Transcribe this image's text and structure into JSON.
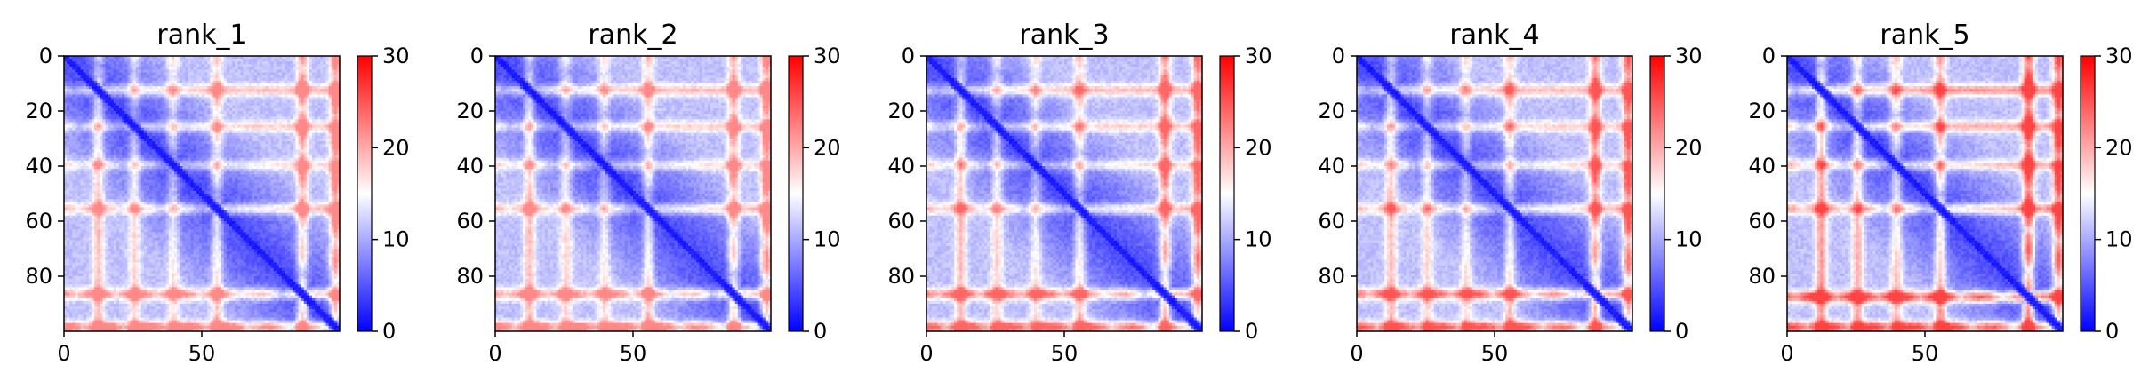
{
  "chart_data": [
    {
      "type": "heatmap",
      "title": "rank_1",
      "matrix_size": 100,
      "x_ticks": [
        0,
        50
      ],
      "y_ticks": [
        0,
        20,
        40,
        60,
        80
      ],
      "xlim": [
        0,
        99
      ],
      "ylim": [
        99,
        0
      ],
      "colorbar": {
        "min": 0,
        "max": 30,
        "ticks": [
          0,
          10,
          20,
          30
        ],
        "colormap": "bwr"
      },
      "bands": [
        {
          "center": 12,
          "intensity": 0.35
        },
        {
          "center": 25,
          "intensity": 0.3
        },
        {
          "center": 39,
          "intensity": 0.3
        },
        {
          "center": 55,
          "intensity": 0.38
        },
        {
          "center": 86,
          "intensity": 0.52
        },
        {
          "center": 98,
          "intensity": 0.62
        }
      ],
      "value_range": [
        1,
        22
      ]
    },
    {
      "type": "heatmap",
      "title": "rank_2",
      "matrix_size": 100,
      "x_ticks": [
        0,
        50
      ],
      "y_ticks": [
        0,
        20,
        40,
        60,
        80
      ],
      "xlim": [
        0,
        99
      ],
      "ylim": [
        99,
        0
      ],
      "colorbar": {
        "min": 0,
        "max": 30,
        "ticks": [
          0,
          10,
          20,
          30
        ],
        "colormap": "bwr"
      },
      "bands": [
        {
          "center": 12,
          "intensity": 0.35
        },
        {
          "center": 25,
          "intensity": 0.3
        },
        {
          "center": 39,
          "intensity": 0.3
        },
        {
          "center": 55,
          "intensity": 0.38
        },
        {
          "center": 86,
          "intensity": 0.52
        },
        {
          "center": 98,
          "intensity": 0.62
        }
      ],
      "value_range": [
        1,
        22
      ]
    },
    {
      "type": "heatmap",
      "title": "rank_3",
      "matrix_size": 100,
      "x_ticks": [
        0,
        50
      ],
      "y_ticks": [
        0,
        20,
        40,
        60,
        80
      ],
      "xlim": [
        0,
        99
      ],
      "ylim": [
        99,
        0
      ],
      "colorbar": {
        "min": 0,
        "max": 30,
        "ticks": [
          0,
          10,
          20,
          30
        ],
        "colormap": "bwr"
      },
      "bands": [
        {
          "center": 12,
          "intensity": 0.35
        },
        {
          "center": 25,
          "intensity": 0.3
        },
        {
          "center": 39,
          "intensity": 0.3
        },
        {
          "center": 55,
          "intensity": 0.38
        },
        {
          "center": 86,
          "intensity": 0.6
        },
        {
          "center": 98,
          "intensity": 0.66
        }
      ],
      "value_range": [
        1,
        24
      ]
    },
    {
      "type": "heatmap",
      "title": "rank_4",
      "matrix_size": 100,
      "x_ticks": [
        0,
        50
      ],
      "y_ticks": [
        0,
        20,
        40,
        60,
        80
      ],
      "xlim": [
        0,
        99
      ],
      "ylim": [
        99,
        0
      ],
      "colorbar": {
        "min": 0,
        "max": 30,
        "ticks": [
          0,
          10,
          20,
          30
        ],
        "colormap": "bwr"
      },
      "bands": [
        {
          "center": 12,
          "intensity": 0.35
        },
        {
          "center": 25,
          "intensity": 0.3
        },
        {
          "center": 39,
          "intensity": 0.3
        },
        {
          "center": 55,
          "intensity": 0.38
        },
        {
          "center": 86,
          "intensity": 0.64
        },
        {
          "center": 98,
          "intensity": 0.68
        }
      ],
      "value_range": [
        1,
        25
      ]
    },
    {
      "type": "heatmap",
      "title": "rank_5",
      "matrix_size": 100,
      "x_ticks": [
        0,
        50
      ],
      "y_ticks": [
        0,
        20,
        40,
        60,
        80
      ],
      "xlim": [
        0,
        99
      ],
      "ylim": [
        99,
        0
      ],
      "colorbar": {
        "min": 0,
        "max": 30,
        "ticks": [
          0,
          10,
          20,
          30
        ],
        "colormap": "bwr"
      },
      "bands": [
        {
          "center": 12,
          "intensity": 0.45
        },
        {
          "center": 25,
          "intensity": 0.4
        },
        {
          "center": 39,
          "intensity": 0.4
        },
        {
          "center": 55,
          "intensity": 0.48
        },
        {
          "center": 87,
          "intensity": 0.78
        },
        {
          "center": 98,
          "intensity": 0.72
        }
      ],
      "value_range": [
        1,
        26
      ]
    }
  ]
}
